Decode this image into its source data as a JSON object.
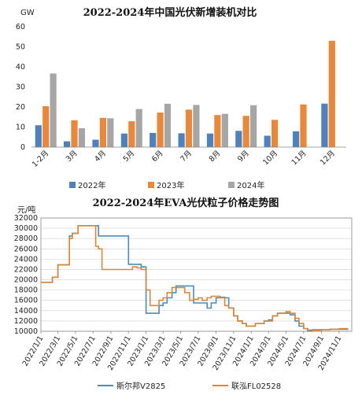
{
  "chart_data": [
    {
      "type": "bar",
      "title": "2022-2024年中国光伏新增装机对比",
      "unit": "GW",
      "ylim": [
        0,
        60
      ],
      "yticks": [
        0,
        10,
        20,
        30,
        40,
        50,
        60
      ],
      "categories": [
        "1-2月",
        "3月",
        "4月",
        "5月",
        "6月",
        "7月",
        "8月",
        "9月",
        "10月",
        "11月",
        "12月"
      ],
      "series": [
        {
          "name": "2022年",
          "color": "#4f81bd",
          "values": [
            10.9,
            2.9,
            3.7,
            6.8,
            7.1,
            6.9,
            6.8,
            8.1,
            5.7,
            7.9,
            21.7
          ]
        },
        {
          "name": "2023年",
          "color": "#e8883a",
          "values": [
            20.4,
            13.4,
            14.6,
            12.9,
            17.2,
            18.7,
            16.0,
            15.6,
            13.6,
            21.3,
            53.0
          ]
        },
        {
          "name": "2024年",
          "color": "#a6a6a6",
          "values": [
            36.7,
            9.4,
            14.4,
            19.0,
            21.6,
            21.0,
            16.6,
            20.9,
            null,
            null,
            null
          ]
        }
      ],
      "legend_position": "bottom"
    },
    {
      "type": "line",
      "title": "2022-2024年EVA光伏粒子价格走势图",
      "unit": "元/吨",
      "ylim": [
        10000,
        32000
      ],
      "yticks": [
        10000,
        12000,
        14000,
        16000,
        18000,
        20000,
        22000,
        24000,
        26000,
        28000,
        30000,
        32000
      ],
      "x_tick_labels": [
        "2022/1/1",
        "2022/3/1",
        "2022/5/1",
        "2022/7/1",
        "2022/9/1",
        "2022/11/1",
        "2023/1/1",
        "2023/3/1",
        "2023/5/1",
        "2023/7/1",
        "2023/9/1",
        "2023/11/1",
        "2024/1/1",
        "2024/3/1",
        "2024/5/1",
        "2024/7/1",
        "2024/9/1",
        "2024/11/1"
      ],
      "series": [
        {
          "name": "斯尔邦V2825",
          "color": "#4a8db5",
          "x": [
            "2022/1/1",
            "2022/2/1",
            "2022/2/10",
            "2022/3/1",
            "2022/3/20",
            "2022/4/10",
            "2022/4/20",
            "2022/5/10",
            "2022/5/20",
            "2022/6/10",
            "2022/7/1",
            "2022/7/20",
            "2022/8/1",
            "2022/9/1",
            "2022/10/1",
            "2022/11/1",
            "2022/11/15",
            "2022/12/1",
            "2022/12/15",
            "2023/1/1",
            "2023/1/15",
            "2023/2/1",
            "2023/2/15",
            "2023/3/1",
            "2023/3/15",
            "2023/4/1",
            "2023/4/15",
            "2023/5/1",
            "2023/5/15",
            "2023/6/1",
            "2023/6/15",
            "2023/7/1",
            "2023/7/15",
            "2023/8/1",
            "2023/8/15",
            "2023/9/1",
            "2023/9/15",
            "2023/10/1",
            "2023/10/15",
            "2023/11/1",
            "2023/11/15",
            "2023/12/1",
            "2023/12/15",
            "2024/1/1",
            "2024/1/15",
            "2024/2/1",
            "2024/2/15",
            "2024/3/1",
            "2024/3/15",
            "2024/4/1",
            "2024/5/1",
            "2024/5/15",
            "2024/6/1",
            "2024/6/15",
            "2024/7/1",
            "2024/7/15",
            "2024/8/1",
            "2024/9/1",
            "2024/10/1",
            "2024/11/1",
            "2024/12/1"
          ],
          "y": [
            19500,
            19500,
            20500,
            22900,
            22900,
            28500,
            29000,
            30500,
            30500,
            30500,
            30500,
            28500,
            28500,
            28500,
            28500,
            23000,
            23000,
            23000,
            22500,
            13500,
            13500,
            13500,
            15000,
            15500,
            16500,
            17500,
            18800,
            18800,
            18800,
            18800,
            15500,
            15500,
            15500,
            14500,
            15500,
            16500,
            16600,
            16500,
            14500,
            13000,
            12000,
            11500,
            11000,
            11000,
            11500,
            11500,
            12000,
            12200,
            13000,
            13500,
            13500,
            13200,
            12000,
            11000,
            10500,
            10200,
            10300,
            10300,
            10400,
            10400,
            10500
          ]
        },
        {
          "name": "联泓FL02528",
          "color": "#d9883a",
          "x": [
            "2022/1/1",
            "2022/2/1",
            "2022/2/10",
            "2022/3/1",
            "2022/3/20",
            "2022/4/10",
            "2022/4/20",
            "2022/5/10",
            "2022/5/20",
            "2022/6/10",
            "2022/7/1",
            "2022/7/10",
            "2022/7/20",
            "2022/8/1",
            "2022/9/1",
            "2022/10/1",
            "2022/11/1",
            "2022/11/15",
            "2022/12/1",
            "2022/12/15",
            "2023/1/1",
            "2023/1/15",
            "2023/2/1",
            "2023/2/15",
            "2023/3/1",
            "2023/3/15",
            "2023/4/1",
            "2023/4/15",
            "2023/5/1",
            "2023/5/15",
            "2023/6/1",
            "2023/6/15",
            "2023/7/1",
            "2023/7/15",
            "2023/8/1",
            "2023/8/15",
            "2023/9/1",
            "2023/9/15",
            "2023/10/1",
            "2023/10/15",
            "2023/11/1",
            "2023/11/15",
            "2023/12/1",
            "2023/12/15",
            "2024/1/1",
            "2024/1/15",
            "2024/2/1",
            "2024/2/15",
            "2024/3/1",
            "2024/3/15",
            "2024/4/1",
            "2024/5/1",
            "2024/5/15",
            "2024/6/1",
            "2024/6/15",
            "2024/7/1",
            "2024/7/15",
            "2024/8/1",
            "2024/9/1",
            "2024/10/1",
            "2024/11/1",
            "2024/12/1"
          ],
          "y": [
            19500,
            19500,
            20500,
            22900,
            22900,
            28000,
            29000,
            30500,
            30500,
            30500,
            30500,
            26500,
            26000,
            22000,
            22000,
            22000,
            22000,
            22500,
            22300,
            22000,
            18000,
            15000,
            15000,
            16000,
            16500,
            17500,
            18500,
            18500,
            18500,
            17500,
            16000,
            16200,
            16500,
            16000,
            16500,
            16800,
            16800,
            16500,
            15000,
            14500,
            13000,
            12000,
            11500,
            11000,
            11000,
            11500,
            11500,
            12000,
            12000,
            13000,
            13500,
            13800,
            13500,
            12500,
            11500,
            10500,
            10000,
            10200,
            10300,
            10400,
            10500,
            10500
          ]
        }
      ],
      "legend_position": "bottom"
    }
  ]
}
